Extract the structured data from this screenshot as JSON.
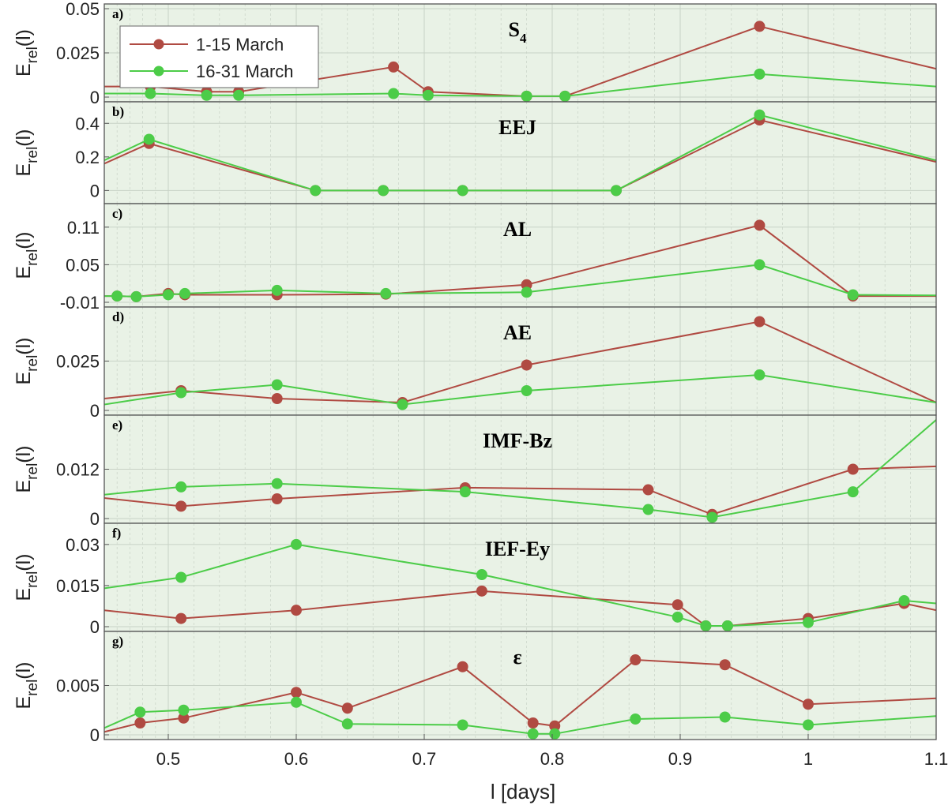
{
  "chart_data": {
    "type": "line",
    "xlabel": "l [days]",
    "xlim": [
      0.45,
      1.1
    ],
    "xticks": [
      0.5,
      0.6,
      0.7,
      0.8,
      0.9,
      1,
      1.1
    ],
    "xtick_labels": [
      "0.5",
      "0.6",
      "0.7",
      "0.8",
      "0.9",
      "1",
      "1.1"
    ],
    "ylabel_main": "E",
    "ylabel_sub": "rel",
    "ylabel_tail": "(l)",
    "grid": true,
    "legend": {
      "placement": "top-left",
      "entries": [
        "1-15 March",
        "16-31 March"
      ]
    },
    "colors": {
      "series1": "#b04a42",
      "series2": "#4ccc48",
      "background": "#e9f2e6",
      "grid": "#c8d2c6"
    },
    "panels": [
      {
        "letter": "a)",
        "title": "S",
        "title_sub": "4",
        "ylim": [
          0,
          0.05
        ],
        "yticks": [
          0,
          0.025,
          0.05
        ],
        "ytick_labels": [
          "0",
          "0.025",
          "0.05"
        ],
        "series": [
          {
            "name": "1-15 March",
            "x": [
              0.45,
              0.486,
              0.53,
              0.555,
              0.676,
              0.703,
              0.78,
              0.81,
              0.962,
              1.1
            ],
            "y": [
              0.006,
              0.006,
              0.003,
              0.003,
              0.017,
              0.003,
              0.0005,
              0.0005,
              0.04,
              0.016
            ]
          },
          {
            "name": "16-31 March",
            "x": [
              0.45,
              0.486,
              0.53,
              0.555,
              0.676,
              0.703,
              0.78,
              0.81,
              0.962,
              1.1
            ],
            "y": [
              0.002,
              0.002,
              0.001,
              0.001,
              0.002,
              0.001,
              0.0005,
              0.0005,
              0.013,
              0.006
            ]
          }
        ]
      },
      {
        "letter": "b)",
        "title": "EEJ",
        "ylim": [
          -0.05,
          0.5
        ],
        "yticks": [
          0,
          0.2,
          0.4
        ],
        "ytick_labels": [
          "0",
          "0.2",
          "0.4"
        ],
        "series": [
          {
            "name": "1-15 March",
            "x": [
              0.45,
              0.485,
              0.615,
              0.668,
              0.73,
              0.85,
              0.962,
              1.1
            ],
            "y": [
              0.16,
              0.28,
              0.0,
              0.0,
              0.0,
              0.0,
              0.42,
              0.17
            ]
          },
          {
            "name": "16-31 March",
            "x": [
              0.45,
              0.485,
              0.615,
              0.668,
              0.73,
              0.85,
              0.962,
              1.1
            ],
            "y": [
              0.18,
              0.305,
              0.0,
              0.0,
              0.0,
              0.0,
              0.45,
              0.18
            ]
          }
        ]
      },
      {
        "letter": "c)",
        "title": "AL",
        "ylim": [
          -0.01,
          0.14
        ],
        "yticks": [
          -0.01,
          0.05,
          0.11
        ],
        "ytick_labels": [
          "-0.01",
          "0.05",
          "0.11"
        ],
        "series": [
          {
            "name": "1-15 March",
            "x": [
              0.45,
              0.46,
              0.475,
              0.5,
              0.513,
              0.585,
              0.67,
              0.78,
              0.962,
              1.035,
              1.1
            ],
            "y": [
              0.0,
              0.0,
              -0.001,
              0.004,
              0.002,
              0.002,
              0.003,
              0.018,
              0.113,
              0.0,
              0.0
            ]
          },
          {
            "name": "16-31 March",
            "x": [
              0.45,
              0.46,
              0.475,
              0.5,
              0.513,
              0.585,
              0.67,
              0.78,
              0.962,
              1.035,
              1.1
            ],
            "y": [
              0.0,
              0.0,
              -0.001,
              0.002,
              0.004,
              0.009,
              0.004,
              0.006,
              0.05,
              0.002,
              0.001
            ]
          }
        ]
      },
      {
        "letter": "d)",
        "title": "AE",
        "ylim": [
          0,
          0.05
        ],
        "yticks": [
          0,
          0.025
        ],
        "ytick_labels": [
          "0",
          "0.025"
        ],
        "series": [
          {
            "name": "1-15 March",
            "x": [
              0.45,
              0.51,
              0.585,
              0.683,
              0.78,
              0.962,
              1.1
            ],
            "y": [
              0.006,
              0.01,
              0.006,
              0.004,
              0.023,
              0.045,
              0.004
            ]
          },
          {
            "name": "16-31 March",
            "x": [
              0.45,
              0.51,
              0.585,
              0.683,
              0.78,
              0.962,
              1.1
            ],
            "y": [
              0.003,
              0.009,
              0.013,
              0.003,
              0.01,
              0.018,
              0.004
            ]
          }
        ]
      },
      {
        "letter": "e)",
        "title": "IMF-Bz",
        "ylim": [
          0,
          0.024
        ],
        "yticks": [
          0,
          0.012
        ],
        "ytick_labels": [
          "0",
          "0.012"
        ],
        "series": [
          {
            "name": "1-15 March",
            "x": [
              0.45,
              0.51,
              0.585,
              0.732,
              0.875,
              0.925,
              1.035,
              1.1
            ],
            "y": [
              0.005,
              0.003,
              0.0048,
              0.0075,
              0.007,
              0.001,
              0.012,
              0.0127
            ]
          },
          {
            "name": "16-31 March",
            "x": [
              0.45,
              0.51,
              0.585,
              0.732,
              0.875,
              0.925,
              1.035,
              1.1
            ],
            "y": [
              0.0058,
              0.0077,
              0.0085,
              0.0065,
              0.0022,
              0.0003,
              0.0065,
              0.024
            ]
          }
        ]
      },
      {
        "letter": "f)",
        "title": "IEF-Ey",
        "ylim": [
          0,
          0.036
        ],
        "yticks": [
          0,
          0.015,
          0.03
        ],
        "ytick_labels": [
          "0",
          "0.015",
          "0.03"
        ],
        "series": [
          {
            "name": "1-15 March",
            "x": [
              0.45,
              0.51,
              0.6,
              0.745,
              0.898,
              0.92,
              0.937,
              1.0,
              1.075,
              1.1
            ],
            "y": [
              0.006,
              0.003,
              0.006,
              0.013,
              0.008,
              0.0003,
              0.0003,
              0.003,
              0.0085,
              0.006
            ]
          },
          {
            "name": "16-31 March",
            "x": [
              0.45,
              0.51,
              0.6,
              0.745,
              0.898,
              0.92,
              0.937,
              1.0,
              1.075,
              1.1
            ],
            "y": [
              0.014,
              0.018,
              0.03,
              0.019,
              0.0035,
              0.0003,
              0.0003,
              0.0015,
              0.0095,
              0.0085
            ]
          }
        ]
      },
      {
        "letter": "g)",
        "title": "ε",
        "ylim": [
          0,
          0.01
        ],
        "yticks": [
          0,
          0.005
        ],
        "ytick_labels": [
          "0",
          "0.005"
        ],
        "series": [
          {
            "name": "1-15 March",
            "x": [
              0.45,
              0.478,
              0.512,
              0.6,
              0.64,
              0.73,
              0.785,
              0.802,
              0.865,
              0.935,
              1.0,
              1.1
            ],
            "y": [
              0.0003,
              0.0012,
              0.0017,
              0.0043,
              0.0027,
              0.0069,
              0.0012,
              0.0009,
              0.0076,
              0.0071,
              0.0031,
              0.0037
            ]
          },
          {
            "name": "16-31 March",
            "x": [
              0.45,
              0.478,
              0.512,
              0.6,
              0.64,
              0.73,
              0.785,
              0.802,
              0.865,
              0.935,
              1.0,
              1.1
            ],
            "y": [
              0.0007,
              0.0023,
              0.0025,
              0.0033,
              0.0011,
              0.001,
              0.0001,
              0.0001,
              0.0016,
              0.0018,
              0.001,
              0.0019
            ]
          }
        ]
      }
    ]
  }
}
